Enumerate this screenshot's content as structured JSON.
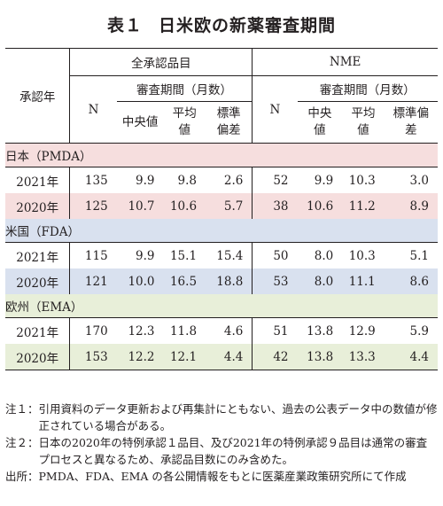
{
  "title": {
    "number": "表１",
    "text": "日米欧の新薬審査期間"
  },
  "table": {
    "year_header": "承認年",
    "groups": [
      {
        "name": "全承認品目",
        "n_label": "N",
        "period_label": "審査期間（月数）",
        "subcols": [
          "中央値",
          "平均値",
          "標準偏差"
        ]
      },
      {
        "name": "NME",
        "n_label": "N",
        "period_label": "審査期間（月数）",
        "subcols": [
          "中央値",
          "平均値",
          "標準偏差"
        ]
      }
    ],
    "sections": [
      {
        "label": "日本（PMDA）",
        "rows": [
          {
            "year": "2021年",
            "values": [
              "135",
              "9.9",
              "9.8",
              "2.6",
              "52",
              "9.9",
              "10.3",
              "3.0"
            ]
          },
          {
            "year": "2020年",
            "values": [
              "125",
              "10.7",
              "10.6",
              "5.7",
              "38",
              "10.6",
              "11.2",
              "8.9"
            ]
          }
        ]
      },
      {
        "label": "米国（FDA）",
        "rows": [
          {
            "year": "2021年",
            "values": [
              "115",
              "9.9",
              "15.1",
              "15.4",
              "50",
              "8.0",
              "10.3",
              "5.1"
            ]
          },
          {
            "year": "2020年",
            "values": [
              "121",
              "10.0",
              "16.5",
              "18.8",
              "53",
              "8.0",
              "11.1",
              "8.6"
            ]
          }
        ]
      },
      {
        "label": "欧州（EMA）",
        "rows": [
          {
            "year": "2021年",
            "values": [
              "170",
              "12.3",
              "11.8",
              "4.6",
              "51",
              "13.8",
              "12.9",
              "5.9"
            ]
          },
          {
            "year": "2020年",
            "values": [
              "153",
              "12.2",
              "12.1",
              "4.4",
              "42",
              "13.8",
              "13.3",
              "4.4"
            ]
          }
        ]
      }
    ]
  },
  "notes": [
    {
      "label": "注１：",
      "text": "引用資料のデータ更新および再集計にともない、過去の公表データ中の数値が修正されている場合がある。"
    },
    {
      "label": "注２：",
      "text": "日本の2020年の特例承認１品目、及び2021年の特例承認９品目は通常の審査プロセスと異なるため、承認品目数にのみ含めた。"
    },
    {
      "label": "出所：",
      "text": "PMDA、FDA、EMA の各公開情報をもとに医薬産業政策研究所にて作成"
    }
  ],
  "colors": {
    "japan": "#f6dede",
    "us": "#d9e1ef",
    "eu": "#e8efd9"
  }
}
